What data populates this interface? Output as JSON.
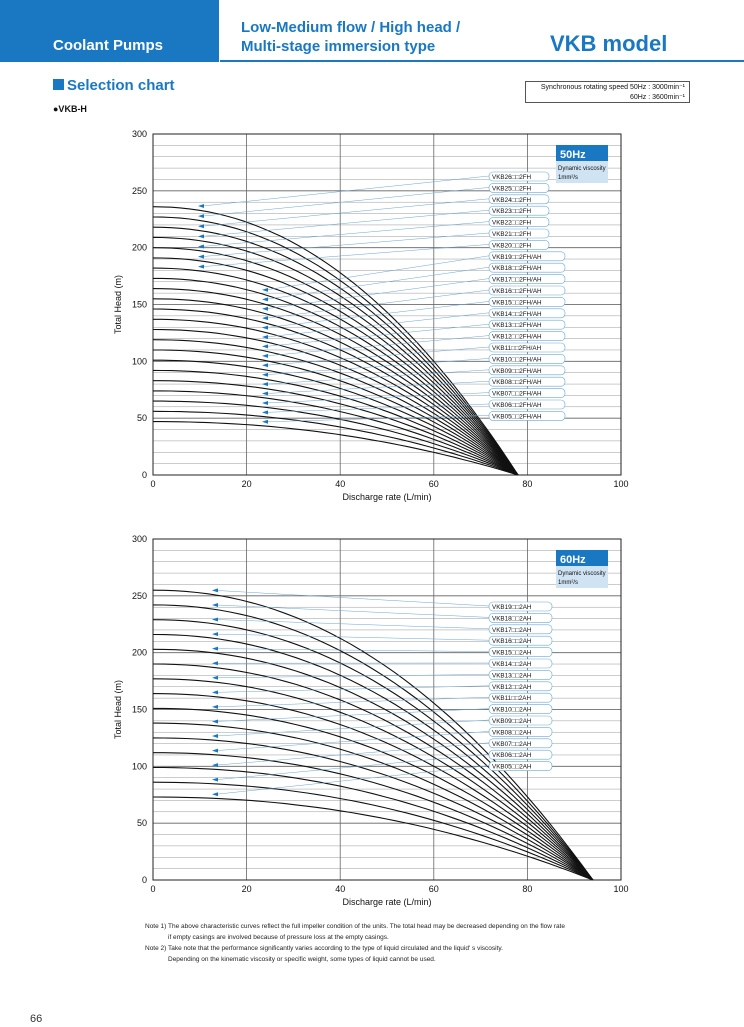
{
  "header": {
    "section": "Coolant Pumps",
    "subtitle_line1": "Low-Medium flow / High head /",
    "subtitle_line2": "Multi-stage immersion type",
    "model": "VKB model"
  },
  "selection_title": "Selection chart",
  "variant": "●VKB-H",
  "speed_box": {
    "line1": "Synchronous rotating speed 50Hz : 3000min⁻¹",
    "line2": "60Hz : 3600min⁻¹"
  },
  "chart_data": [
    {
      "type": "line",
      "title": "",
      "frequency_label": "50Hz",
      "viscosity_label_1": "Dynamic viscosity",
      "viscosity_label_2": "1mm²/s",
      "xlabel": "Discharge rate (L/min)",
      "ylabel": "Total Head (m)",
      "xlim": [
        0,
        100
      ],
      "ylim": [
        0,
        300
      ],
      "x_ticks": [
        "0",
        "20",
        "40",
        "60",
        "80",
        "100"
      ],
      "y_ticks": [
        "0",
        "50",
        "100",
        "150",
        "200",
        "250",
        "300"
      ],
      "grid": true,
      "max_flow": 78,
      "series": [
        {
          "name": "VKB26□□2FH",
          "shutoff_head": 236
        },
        {
          "name": "VKB25□□2FH",
          "shutoff_head": 227
        },
        {
          "name": "VKB24□□2FH",
          "shutoff_head": 218
        },
        {
          "name": "VKB23□□2FH",
          "shutoff_head": 209
        },
        {
          "name": "VKB22□□2FH",
          "shutoff_head": 200
        },
        {
          "name": "VKB21□□2FH",
          "shutoff_head": 191
        },
        {
          "name": "VKB20□□2FH",
          "shutoff_head": 182
        },
        {
          "name": "VKB19□□2FH/AH",
          "shutoff_head": 173
        },
        {
          "name": "VKB18□□2FH/AH",
          "shutoff_head": 164
        },
        {
          "name": "VKB17□□2FH/AH",
          "shutoff_head": 155
        },
        {
          "name": "VKB16□□2FH/AH",
          "shutoff_head": 146
        },
        {
          "name": "VKB15□□2FH/AH",
          "shutoff_head": 137
        },
        {
          "name": "VKB14□□2FH/AH",
          "shutoff_head": 128
        },
        {
          "name": "VKB13□□2FH/AH",
          "shutoff_head": 119
        },
        {
          "name": "VKB12□□2FH/AH",
          "shutoff_head": 110
        },
        {
          "name": "VKB11□□2FH/AH",
          "shutoff_head": 101
        },
        {
          "name": "VKB10□□2FH/AH",
          "shutoff_head": 92
        },
        {
          "name": "VKB09□□2FH/AH",
          "shutoff_head": 83
        },
        {
          "name": "VKB08□□2FH/AH",
          "shutoff_head": 74
        },
        {
          "name": "VKB07□□2FH/AH",
          "shutoff_head": 65
        },
        {
          "name": "VKB06□□2FH/AH",
          "shutoff_head": 56
        },
        {
          "name": "VKB05□□2FH/AH",
          "shutoff_head": 47
        }
      ]
    },
    {
      "type": "line",
      "title": "",
      "frequency_label": "60Hz",
      "viscosity_label_1": "Dynamic viscosity",
      "viscosity_label_2": "1mm²/s",
      "xlabel": "Discharge rate (L/min)",
      "ylabel": "Total Head (m)",
      "xlim": [
        0,
        100
      ],
      "ylim": [
        0,
        300
      ],
      "x_ticks": [
        "0",
        "20",
        "40",
        "60",
        "80",
        "100"
      ],
      "y_ticks": [
        "0",
        "50",
        "100",
        "150",
        "200",
        "250",
        "300"
      ],
      "grid": true,
      "max_flow": 94,
      "series": [
        {
          "name": "VKB19□□2AH",
          "shutoff_head": 255
        },
        {
          "name": "VKB18□□2AH",
          "shutoff_head": 242
        },
        {
          "name": "VKB17□□2AH",
          "shutoff_head": 229
        },
        {
          "name": "VKB16□□2AH",
          "shutoff_head": 216
        },
        {
          "name": "VKB15□□2AH",
          "shutoff_head": 203
        },
        {
          "name": "VKB14□□2AH",
          "shutoff_head": 190
        },
        {
          "name": "VKB13□□2AH",
          "shutoff_head": 177
        },
        {
          "name": "VKB12□□2AH",
          "shutoff_head": 164
        },
        {
          "name": "VKB11□□2AH",
          "shutoff_head": 151
        },
        {
          "name": "VKB10□□2AH",
          "shutoff_head": 138
        },
        {
          "name": "VKB09□□2AH",
          "shutoff_head": 125
        },
        {
          "name": "VKB08□□2AH",
          "shutoff_head": 112
        },
        {
          "name": "VKB07□□2AH",
          "shutoff_head": 99
        },
        {
          "name": "VKB06□□2AH",
          "shutoff_head": 86
        },
        {
          "name": "VKB05□□2AH",
          "shutoff_head": 73
        }
      ]
    }
  ],
  "notes": {
    "n1a": "Note 1) The above characteristic curves reflect the full impeller condition of the units. The total head may be decreased depending on the flow rate",
    "n1b": "if empty casings are involved because of pressure loss at the empty casings.",
    "n2a": "Note 2) Take note that the performance significantly varies according to the type of liquid circulated and the liquid' s viscosity.",
    "n2b": "Depending on the kinematic viscosity or specific weight, some types of liquid cannot be used."
  },
  "page_number": "66",
  "colors": {
    "brand_blue": "#1a78c2",
    "label_blue_bg": "#cfe3f3",
    "grid": "#555555"
  }
}
